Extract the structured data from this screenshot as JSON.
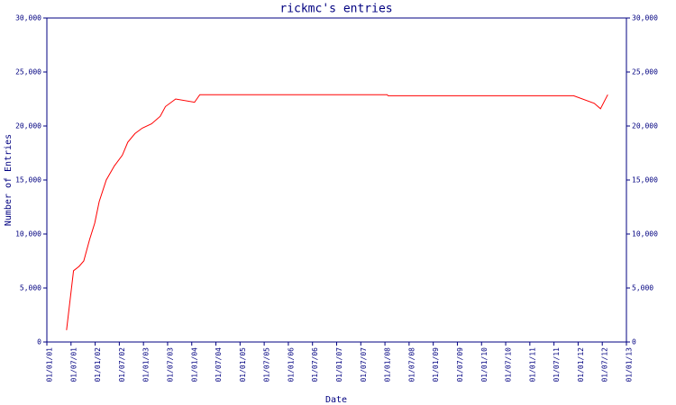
{
  "chart_data": {
    "type": "line",
    "title": "rickmc's entries",
    "x_label": "Date",
    "y_label": "Number of Entries",
    "x": [
      "28/05/01",
      "20/07/01",
      "01/09/01",
      "06/10/01",
      "20/11/01",
      "28/12/01",
      "01/02/02",
      "24/03/02",
      "24/05/02",
      "24/07/02",
      "04/09/02",
      "28/10/02",
      "22/12/02",
      "01/03/03",
      "06/05/03",
      "15/06/03",
      "01/09/03",
      "22/01/04",
      "01/03/04",
      "18/01/08",
      "25/01/08",
      "28/11/11",
      "01/05/12",
      "18/06/12",
      "12/08/12"
    ],
    "series": [
      {
        "name": "entries",
        "color": "#ff0000",
        "values": [
          1100,
          6600,
          7000,
          7500,
          9500,
          11000,
          13000,
          15000,
          16300,
          17300,
          18500,
          19300,
          19800,
          20200,
          20900,
          21800,
          22500,
          22200,
          22900,
          22900,
          22800,
          22800,
          22100,
          21600,
          22900
        ]
      }
    ],
    "xlim": [
      "01/01/01",
      "01/01/13"
    ],
    "xticks": [
      "01/01/01",
      "01/07/01",
      "01/01/02",
      "01/07/02",
      "01/01/03",
      "01/07/03",
      "01/01/04",
      "01/07/04",
      "01/01/05",
      "01/07/05",
      "01/01/06",
      "01/07/06",
      "01/01/07",
      "01/07/07",
      "01/01/08",
      "01/07/08",
      "01/01/09",
      "01/07/09",
      "01/01/10",
      "01/07/10",
      "01/01/11",
      "01/07/11",
      "01/01/12",
      "01/07/12",
      "01/01/13"
    ],
    "ylim": [
      0,
      30000
    ],
    "yticks": [
      0,
      {
        "value": 5000,
        "label": "5,000"
      },
      {
        "value": 10000,
        "label": "10,000"
      },
      {
        "value": 15000,
        "label": "15,000"
      },
      {
        "value": 20000,
        "label": "20,000"
      },
      {
        "value": 25000,
        "label": "25,000"
      },
      {
        "value": 30000,
        "label": "30,000"
      }
    ],
    "y2lim": [
      0,
      30000
    ],
    "y2ticks": [
      0,
      {
        "value": 5000,
        "label": "5,000"
      },
      {
        "value": 10000,
        "label": "10,000"
      },
      {
        "value": 15000,
        "label": "15,000"
      },
      {
        "value": 20000,
        "label": "20,000"
      },
      {
        "value": 25000,
        "label": "25,000"
      },
      {
        "value": 30000,
        "label": "30,000"
      }
    ],
    "axis_color": "#000080",
    "grid": false
  }
}
